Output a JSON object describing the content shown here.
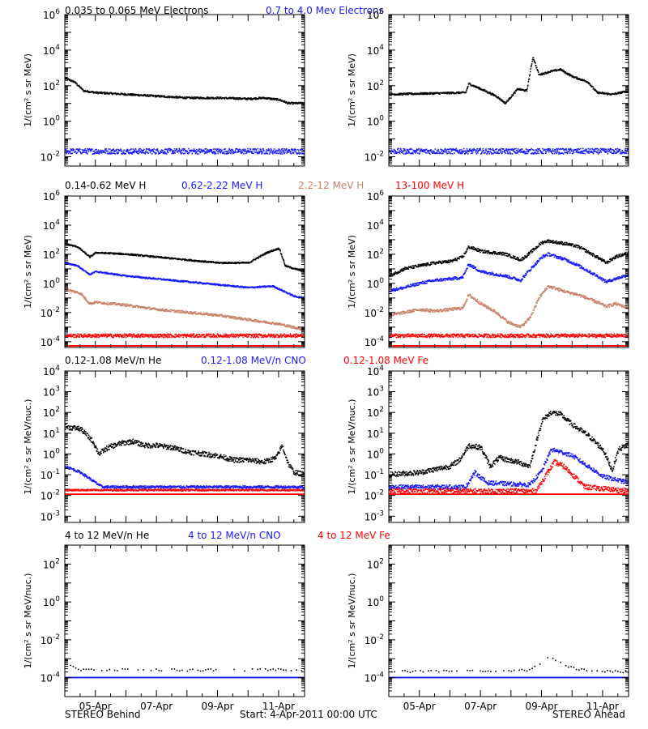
{
  "footer": {
    "left": "STEREO Behind",
    "center": "Start:  4-Apr-2011 00:00 UTC",
    "right": "STEREO Ahead"
  },
  "x_axis": {
    "range_days_after_start": [
      0,
      7.85
    ],
    "tick_labels": [
      "05-Apr",
      "07-Apr",
      "09-Apr",
      "11-Apr"
    ],
    "tick_dates": [
      "2011-04-05",
      "2011-04-07",
      "2011-04-09",
      "2011-04-11"
    ],
    "minor_tick_step_days": 0.5
  },
  "colors": {
    "black": "#000000",
    "blue": "#1a1aff",
    "tan": "#c8846a",
    "red": "#ff0000"
  },
  "chart_data": [
    {
      "type": "scatter",
      "row": 0,
      "ylabel": "1/(cm² s sr MeV)",
      "yscale": "log",
      "ylim": [
        0.003,
        1000000
      ],
      "ytick_exponents": [
        -2,
        0,
        2,
        4,
        6
      ],
      "legend": [
        {
          "label": "0.035 to 0.065 MeV Electrons",
          "color": "#000000"
        },
        {
          "label": "0.7 to 4.0 Mev Electrons",
          "color": "#1a1aff"
        }
      ],
      "panels": [
        {
          "spacecraft": "STEREO Behind",
          "series": [
            {
              "color": "#000000",
              "x": [
                0,
                0.3,
                0.6,
                1.0,
                2,
                3,
                4,
                5,
                6,
                6.5,
                7,
                7.3,
                7.85
              ],
              "logy": [
                2.4,
                2.2,
                1.7,
                1.6,
                1.5,
                1.4,
                1.3,
                1.3,
                1.25,
                1.3,
                1.2,
                1.0,
                1.0
              ],
              "scatter": 0.05
            },
            {
              "color": "#1a1aff",
              "x": [
                0,
                7.85
              ],
              "logy": [
                -1.7,
                -1.7
              ],
              "scatter": 0.15
            }
          ]
        },
        {
          "spacecraft": "STEREO Ahead",
          "series": [
            {
              "color": "#000000",
              "x": [
                0,
                2.5,
                2.6,
                3.0,
                3.5,
                3.8,
                4.2,
                4.5,
                4.7,
                4.9,
                5.3,
                5.6,
                6.0,
                6.5,
                6.8,
                7.3,
                7.85
              ],
              "logy": [
                1.5,
                1.6,
                2.1,
                1.8,
                1.4,
                1.0,
                1.8,
                1.7,
                3.6,
                2.6,
                2.8,
                2.9,
                2.5,
                2.2,
                1.6,
                1.5,
                1.7
              ],
              "scatter": 0.05
            },
            {
              "color": "#1a1aff",
              "x": [
                0,
                7.85
              ],
              "logy": [
                -1.7,
                -1.7
              ],
              "scatter": 0.15
            }
          ]
        }
      ]
    },
    {
      "type": "scatter",
      "row": 1,
      "ylabel": "1/(cm² s sr MeV)",
      "yscale": "log",
      "ylim": [
        4e-05,
        1000000
      ],
      "ytick_exponents": [
        -4,
        -2,
        0,
        2,
        4,
        6
      ],
      "legend": [
        {
          "label": "0.14-0.62 MeV H",
          "color": "#000000"
        },
        {
          "label": "0.62-2.22 MeV H",
          "color": "#1a1aff"
        },
        {
          "label": "2.2-12 MeV H",
          "color": "#c8846a"
        },
        {
          "label": "13-100 MeV H",
          "color": "#ff0000"
        }
      ],
      "panels": [
        {
          "spacecraft": "STEREO Behind",
          "series": [
            {
              "color": "#000000",
              "x": [
                0,
                0.4,
                0.8,
                1.0,
                2,
                3,
                4,
                5,
                6,
                6.6,
                7.0,
                7.2,
                7.5,
                7.85
              ],
              "logy": [
                2.7,
                2.5,
                1.8,
                2.1,
                2.0,
                1.8,
                1.6,
                1.4,
                1.4,
                2.1,
                2.4,
                1.2,
                1.0,
                0.8
              ],
              "scatter": 0.05
            },
            {
              "color": "#1a1aff",
              "x": [
                0,
                0.4,
                0.8,
                1.0,
                2,
                3,
                4,
                5,
                6,
                6.8,
                7.2,
                7.5,
                7.85
              ],
              "logy": [
                1.4,
                1.2,
                0.6,
                0.8,
                0.5,
                0.3,
                0.1,
                -0.1,
                -0.3,
                -0.2,
                -0.6,
                -0.9,
                -1.0
              ],
              "scatter": 0.05
            },
            {
              "color": "#c8846a",
              "x": [
                0,
                0.5,
                0.8,
                1.0,
                2,
                3,
                4,
                5,
                6,
                7.0,
                7.85
              ],
              "logy": [
                -0.4,
                -0.7,
                -1.4,
                -1.3,
                -1.5,
                -1.8,
                -2.0,
                -2.2,
                -2.5,
                -2.8,
                -3.2
              ],
              "scatter": 0.08
            },
            {
              "color": "#ff0000",
              "x": [
                0,
                7.85
              ],
              "logy": [
                -3.6,
                -3.6
              ],
              "scatter": 0.12
            },
            {
              "color": "#ff0000",
              "x": [
                0,
                7.85
              ],
              "logy": [
                -4.3,
                -4.3
              ],
              "scatter": 0.0
            }
          ]
        },
        {
          "spacecraft": "STEREO Ahead",
          "series": [
            {
              "color": "#000000",
              "x": [
                0,
                0.5,
                1.0,
                1.5,
                2.0,
                2.4,
                2.6,
                3.0,
                3.8,
                4.3,
                4.5,
                5.0,
                5.2,
                5.8,
                6.2,
                6.8,
                7.1,
                7.4,
                7.85
              ],
              "logy": [
                0.5,
                1.0,
                1.2,
                1.4,
                1.5,
                1.8,
                2.5,
                2.2,
                2.0,
                1.6,
                1.9,
                2.8,
                2.9,
                2.7,
                2.5,
                1.8,
                1.4,
                1.8,
                2.1
              ],
              "scatter": 0.1
            },
            {
              "color": "#1a1aff",
              "x": [
                0,
                0.5,
                1.0,
                1.5,
                2.0,
                2.4,
                2.6,
                3.0,
                3.8,
                4.3,
                4.5,
                5.0,
                5.2,
                5.8,
                6.2,
                6.8,
                7.1,
                7.4,
                7.85
              ],
              "logy": [
                -0.5,
                -0.3,
                0.0,
                0.2,
                0.3,
                0.4,
                1.3,
                0.8,
                0.5,
                0.2,
                0.7,
                1.8,
                2.0,
                1.6,
                1.2,
                0.5,
                0.1,
                0.3,
                0.6
              ],
              "scatter": 0.1
            },
            {
              "color": "#c8846a",
              "x": [
                0,
                0.5,
                1.0,
                1.5,
                2.0,
                2.4,
                2.6,
                3.0,
                3.5,
                3.9,
                4.3,
                4.6,
                4.9,
                5.2,
                5.8,
                6.2,
                6.8,
                7.1,
                7.4,
                7.85
              ],
              "logy": [
                -2.2,
                -2.0,
                -1.8,
                -1.9,
                -1.8,
                -1.7,
                -0.8,
                -1.4,
                -2.0,
                -2.7,
                -3.0,
                -2.4,
                -1.0,
                -0.2,
                -0.6,
                -0.8,
                -1.3,
                -1.6,
                -1.4,
                -1.7
              ],
              "scatter": 0.1
            },
            {
              "color": "#ff0000",
              "x": [
                0,
                7.85
              ],
              "logy": [
                -3.6,
                -3.6
              ],
              "scatter": 0.12
            },
            {
              "color": "#ff0000",
              "x": [
                0,
                7.85
              ],
              "logy": [
                -4.3,
                -4.3
              ],
              "scatter": 0.0
            }
          ]
        }
      ]
    },
    {
      "type": "scatter",
      "row": 2,
      "ylabel": "1/(cm² s sr MeV/nuc.)",
      "yscale": "log",
      "ylim": [
        0.0005,
        10000
      ],
      "ytick_exponents": [
        -3,
        -2,
        -1,
        0,
        1,
        2,
        3,
        4
      ],
      "legend": [
        {
          "label": "0.12-1.08 MeV/n He",
          "color": "#000000"
        },
        {
          "label": "0.12-1.08 MeV/n CNO",
          "color": "#1a1aff"
        },
        {
          "label": "0.12-1.08 MeV Fe",
          "color": "#ff0000"
        }
      ],
      "panels": [
        {
          "spacecraft": "STEREO Behind",
          "series": [
            {
              "color": "#000000",
              "x": [
                0,
                0.5,
                0.9,
                1.1,
                1.4,
                1.8,
                2.2,
                2.6,
                3.0,
                3.5,
                4.0,
                4.5,
                5.0,
                5.5,
                6.0,
                6.5,
                6.9,
                7.1,
                7.3,
                7.5,
                7.85
              ],
              "logy": [
                1.3,
                1.2,
                0.6,
                0.0,
                0.3,
                0.5,
                0.6,
                0.4,
                0.4,
                0.3,
                0.1,
                0.0,
                -0.1,
                -0.3,
                -0.3,
                -0.4,
                -0.2,
                0.4,
                -0.5,
                -0.9,
                -1.0
              ],
              "scatter": 0.12
            },
            {
              "color": "#1a1aff",
              "x": [
                0,
                0.5,
                0.9,
                1.2,
                7.85
              ],
              "logy": [
                -0.6,
                -0.9,
                -1.3,
                -1.6,
                -1.6
              ],
              "scatter": 0.06
            },
            {
              "color": "#ff0000",
              "x": [
                0,
                7.85
              ],
              "logy": [
                -1.75,
                -1.75
              ],
              "scatter": 0.04
            },
            {
              "color": "#ff0000",
              "x": [
                0,
                7.85
              ],
              "logy": [
                -1.95,
                -1.95
              ],
              "scatter": 0.0
            }
          ]
        },
        {
          "spacecraft": "STEREO Ahead",
          "series": [
            {
              "color": "#000000",
              "x": [
                0,
                1.0,
                2.0,
                2.3,
                2.6,
                3.0,
                3.3,
                3.6,
                4.2,
                4.6,
                5.0,
                5.3,
                5.6,
                6.0,
                6.5,
                7.0,
                7.3,
                7.5,
                7.85
              ],
              "logy": [
                -1.0,
                -0.9,
                -0.6,
                -0.3,
                0.4,
                0.3,
                -0.6,
                -0.2,
                -0.4,
                -0.6,
                1.6,
                2.0,
                1.9,
                1.4,
                0.9,
                0.2,
                -0.8,
                0.2,
                0.5
              ],
              "scatter": 0.12
            },
            {
              "color": "#1a1aff",
              "x": [
                0,
                2.5,
                2.8,
                3.2,
                4.6,
                5.0,
                5.3,
                5.6,
                6.0,
                6.5,
                7.0,
                7.85
              ],
              "logy": [
                -1.6,
                -1.6,
                -0.9,
                -1.4,
                -1.5,
                -0.8,
                0.2,
                0.1,
                -0.1,
                -0.6,
                -1.1,
                -1.4
              ],
              "scatter": 0.1
            },
            {
              "color": "#ff0000",
              "x": [
                0,
                4.8,
                5.1,
                5.4,
                5.7,
                6.0,
                6.4,
                7.85
              ],
              "logy": [
                -1.8,
                -1.8,
                -1.1,
                -0.4,
                -0.6,
                -1.0,
                -1.6,
                -1.8
              ],
              "scatter": 0.12
            },
            {
              "color": "#ff0000",
              "x": [
                0,
                7.85
              ],
              "logy": [
                -1.95,
                -1.95
              ],
              "scatter": 0.0
            }
          ]
        }
      ]
    },
    {
      "type": "scatter",
      "row": 3,
      "ylabel": "1/(cm² s sr MeV/nuc.)",
      "yscale": "log",
      "ylim": [
        1e-05,
        1000
      ],
      "ytick_exponents": [
        -4,
        -2,
        0,
        2
      ],
      "legend": [
        {
          "label": "4 to 12 MeV/n He",
          "color": "#000000"
        },
        {
          "label": "4 to 12 MeV/n CNO",
          "color": "#1a1aff"
        },
        {
          "label": "4 to 12 MeV Fe",
          "color": "#ff0000"
        }
      ],
      "panels": [
        {
          "spacecraft": "STEREO Behind",
          "series": [
            {
              "color": "#000000",
              "x": [
                0,
                0.3,
                0.5,
                7.85
              ],
              "logy": [
                -3.3,
                -3.5,
                -3.6,
                -3.6
              ],
              "scatter": 0.06,
              "sparse": true
            },
            {
              "color": "#1a1aff",
              "x": [
                0,
                7.85
              ],
              "logy": [
                -4.0,
                -4.0
              ],
              "scatter": 0.0
            }
          ]
        },
        {
          "spacecraft": "STEREO Ahead",
          "series": [
            {
              "color": "#000000",
              "x": [
                0,
                4.6,
                4.9,
                5.2,
                5.5,
                5.8,
                6.2,
                7.85
              ],
              "logy": [
                -3.7,
                -3.6,
                -3.3,
                -2.9,
                -3.1,
                -3.4,
                -3.6,
                -3.7
              ],
              "scatter": 0.06,
              "sparse": true
            },
            {
              "color": "#1a1aff",
              "x": [
                0,
                7.85
              ],
              "logy": [
                -4.0,
                -4.0
              ],
              "scatter": 0.0
            }
          ]
        }
      ]
    }
  ]
}
